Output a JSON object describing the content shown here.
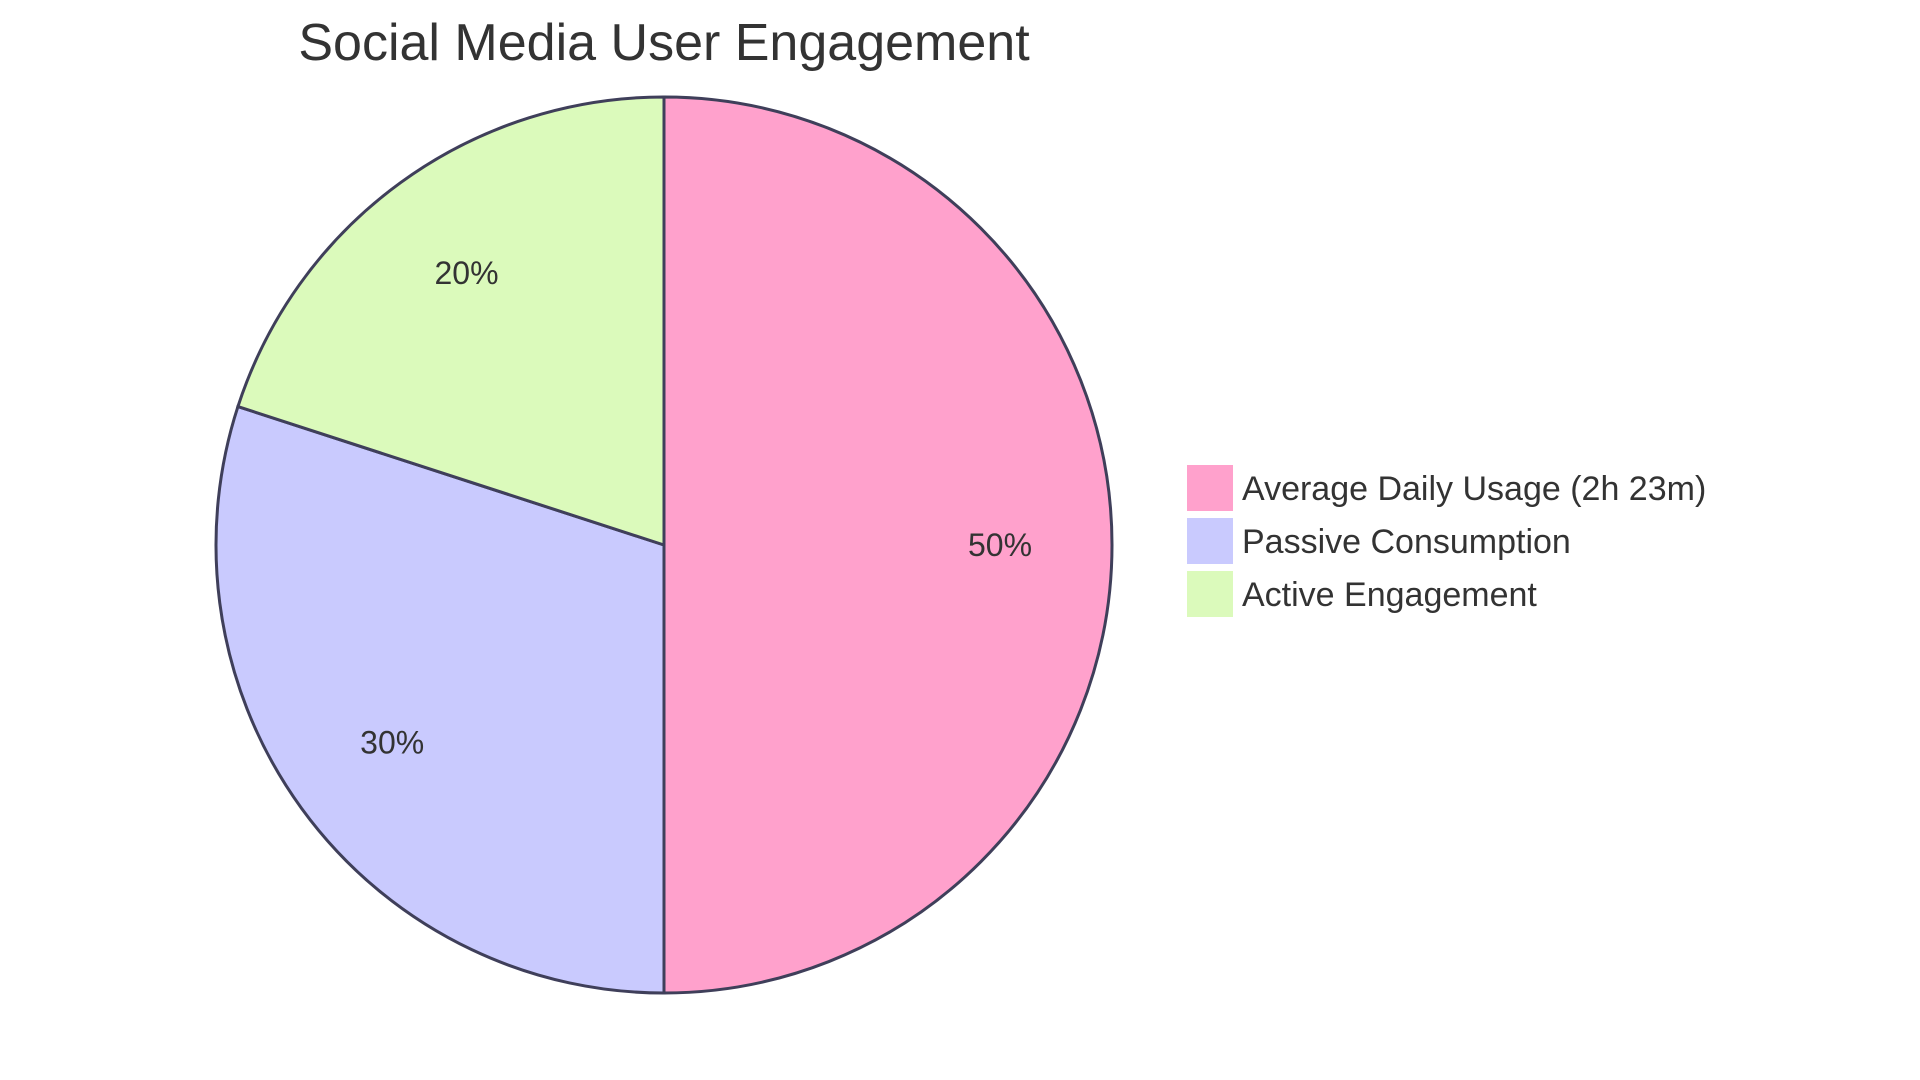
{
  "chart_data": {
    "type": "pie",
    "title": "Social Media User Engagement",
    "categories": [
      "Average Daily Usage (2h 23m)",
      "Passive Consumption",
      "Active Engagement"
    ],
    "values": [
      50,
      30,
      20
    ],
    "labels": [
      "50%",
      "30%",
      "20%"
    ],
    "colors": [
      "#FFA1CC",
      "#C9CAFE",
      "#DBFABB"
    ],
    "stroke_color": "#3F3F5A",
    "legend_position": "right",
    "start_angle_deg": 0,
    "direction": "clockwise"
  },
  "title": "Social Media User Engagement",
  "legend": [
    {
      "label": "Average Daily Usage (2h 23m)",
      "color": "#FFA1CC"
    },
    {
      "label": "Passive Consumption",
      "color": "#C9CAFE"
    },
    {
      "label": "Active Engagement",
      "color": "#DBFABB"
    }
  ],
  "slices": [
    {
      "label": "50%",
      "color": "#FFA1CC"
    },
    {
      "label": "30%",
      "color": "#C9CAFE"
    },
    {
      "label": "20%",
      "color": "#DBFABB"
    }
  ]
}
